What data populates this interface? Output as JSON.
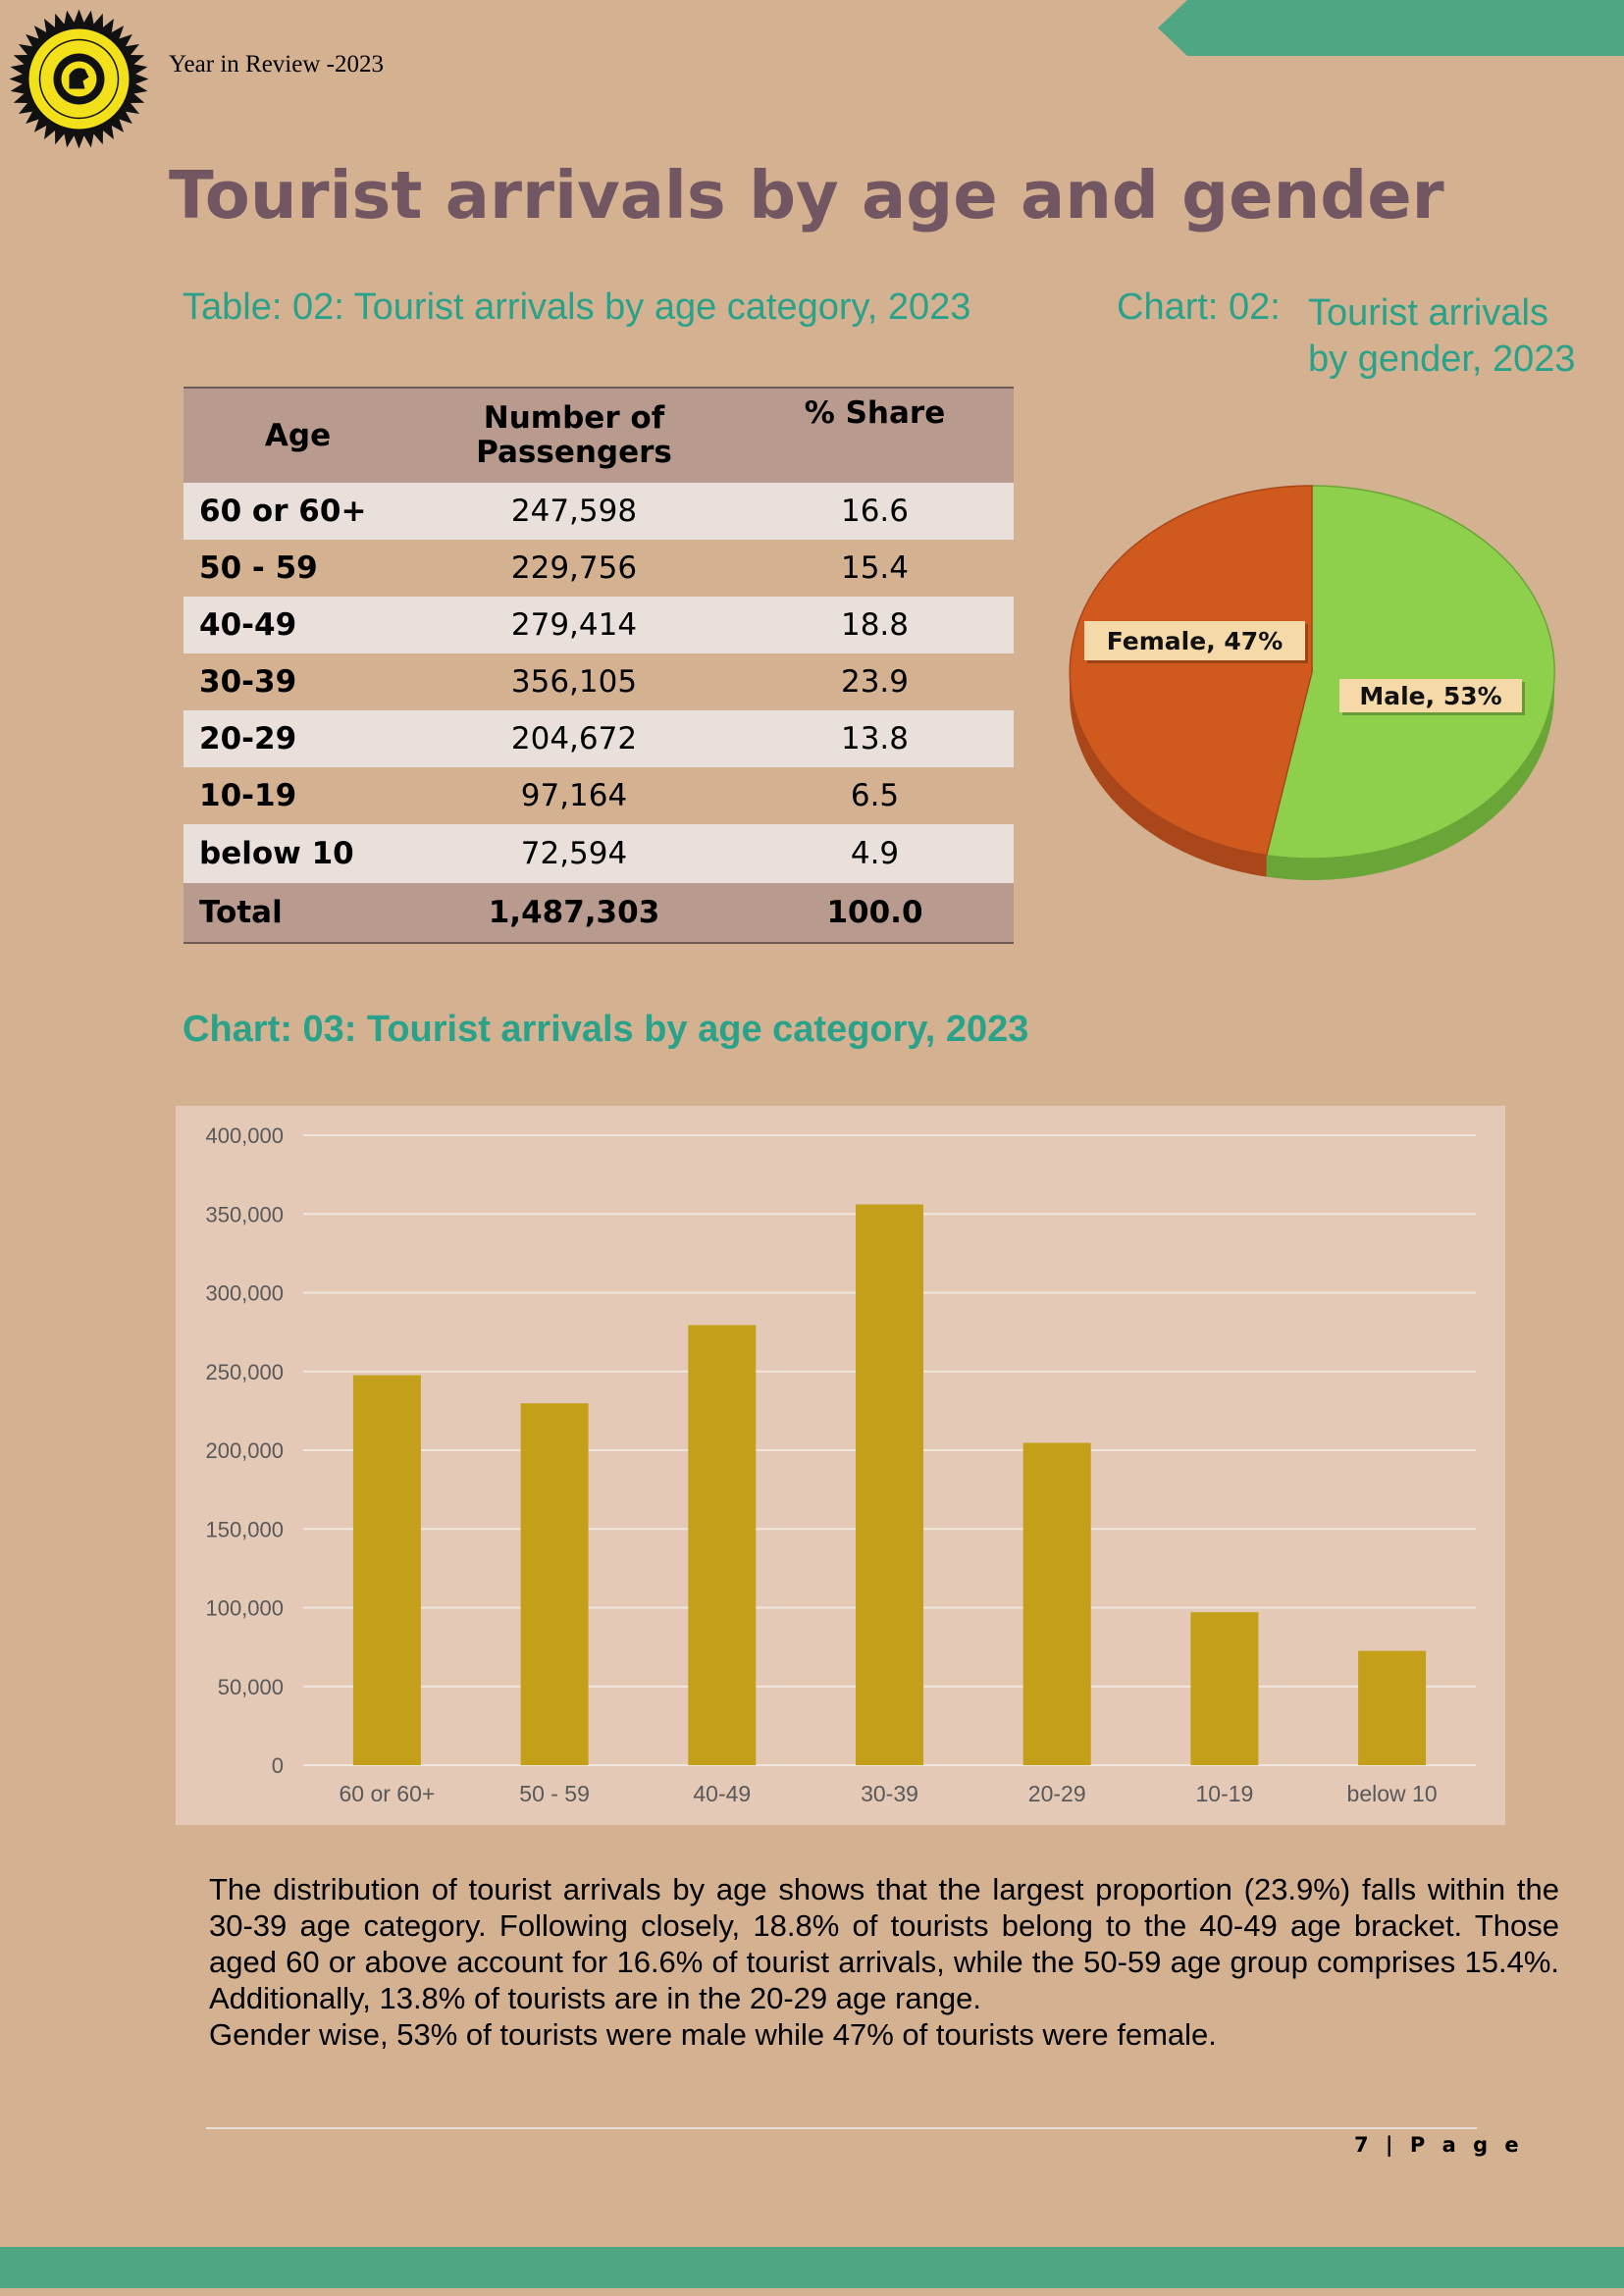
{
  "header": {
    "text": "Year in Review -2023"
  },
  "page_title": "Tourist arrivals by age and gender",
  "table": {
    "caption": "Table: 02: Tourist arrivals by age category, 2023",
    "headers": [
      "Age",
      "Number of Passengers",
      "% Share"
    ],
    "rows": [
      {
        "age": "60 or 60+",
        "passengers": "247,598",
        "share": "16.6"
      },
      {
        "age": "50 - 59",
        "passengers": "229,756",
        "share": "15.4"
      },
      {
        "age": "40-49",
        "passengers": "279,414",
        "share": "18.8"
      },
      {
        "age": "30-39",
        "passengers": "356,105",
        "share": "23.9"
      },
      {
        "age": "20-29",
        "passengers": "204,672",
        "share": "13.8"
      },
      {
        "age": "10-19",
        "passengers": "97,164",
        "share": "6.5"
      },
      {
        "age": "below 10",
        "passengers": "72,594",
        "share": "4.9"
      }
    ],
    "total": {
      "age": "Total",
      "passengers": "1,487,303",
      "share": "100.0"
    }
  },
  "chart02": {
    "caption_prefix": "Chart: 02:",
    "caption_line1": "Tourist arrivals",
    "caption_line2": "by gender, 2023"
  },
  "chart03": {
    "caption": "Chart: 03: Tourist arrivals by age category, 2023"
  },
  "chart_data": [
    {
      "type": "pie",
      "categories": [
        "Female",
        "Male"
      ],
      "values": [
        47,
        53
      ],
      "labels": [
        "Female, 47%",
        "Male, 53%"
      ],
      "colors": [
        "#d05a1e",
        "#8ecf4c"
      ]
    },
    {
      "type": "bar",
      "categories": [
        "60 or 60+",
        "50 - 59",
        "40-49",
        "30-39",
        "20-29",
        "10-19",
        "below 10"
      ],
      "values": [
        247598,
        229756,
        279414,
        356105,
        204672,
        97164,
        72594
      ],
      "ylim": [
        0,
        400000
      ],
      "yticks": [
        "0",
        "50,000",
        "100,000",
        "150,000",
        "200,000",
        "250,000",
        "300,000",
        "350,000",
        "400,000"
      ],
      "grid": true,
      "bar_color": "#c49f1a"
    }
  ],
  "summary": {
    "paragraph1": "The distribution of tourist arrivals by age shows that the largest proportion (23.9%) falls within the 30-39 age category. Following closely, 18.8% of tourists belong to the 40-49 age bracket. Those aged 60 or above account for 16.6% of tourist arrivals, while the 50-59 age group comprises 15.4%. Additionally, 13.8% of tourists are in the 20-29 age range.",
    "paragraph2": "Gender wise, 53% of tourists were male while 47% of tourists were female."
  },
  "footer": {
    "page": "7 | P a g e"
  },
  "colors": {
    "teal": "#2aa28a",
    "title": "#725763",
    "page_bg": "#d4b191",
    "band": "#4fa683"
  }
}
